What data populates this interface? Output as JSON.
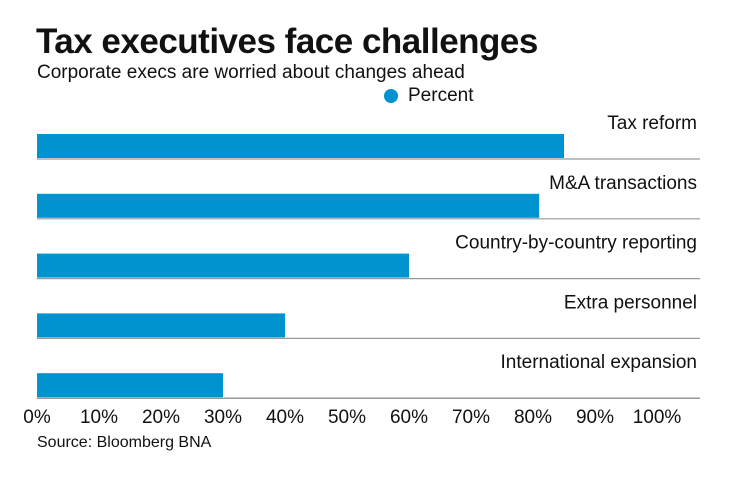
{
  "chart_data": {
    "type": "bar",
    "orientation": "horizontal",
    "title": "Tax executives face challenges",
    "subtitle": "Corporate execs are worried about changes ahead",
    "categories": [
      "Tax reform",
      "M&A transactions",
      "Country-by-country reporting",
      "Extra personnel",
      "International expansion"
    ],
    "series": [
      {
        "name": "Percent",
        "values": [
          85,
          81,
          60,
          40,
          30
        ],
        "color": "#0093d0"
      }
    ],
    "xlim": [
      0,
      100
    ],
    "xticks": [
      "0%",
      "10%",
      "20%",
      "30%",
      "40%",
      "50%",
      "60%",
      "70%",
      "80%",
      "90%",
      "100%"
    ],
    "legend": "top-center",
    "grid": false,
    "source": "Source: Bloomberg BNA"
  }
}
